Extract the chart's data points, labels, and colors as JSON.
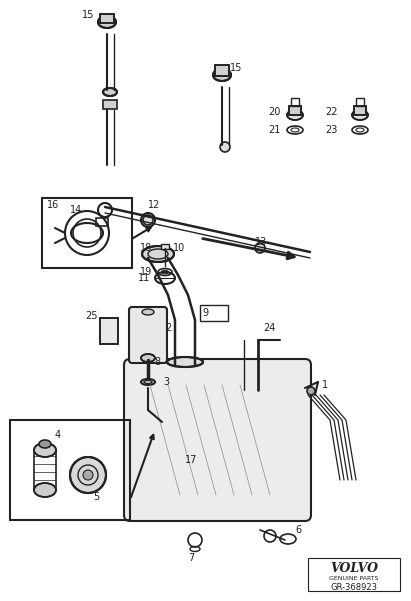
{
  "bg_color": "#ffffff",
  "line_color": "#222222",
  "fig_width": 4.11,
  "fig_height": 6.01,
  "dpi": 100,
  "volvo_text": "VOLVO",
  "genuine_text": "GENUINE PARTS",
  "part_number": "GR-368923"
}
